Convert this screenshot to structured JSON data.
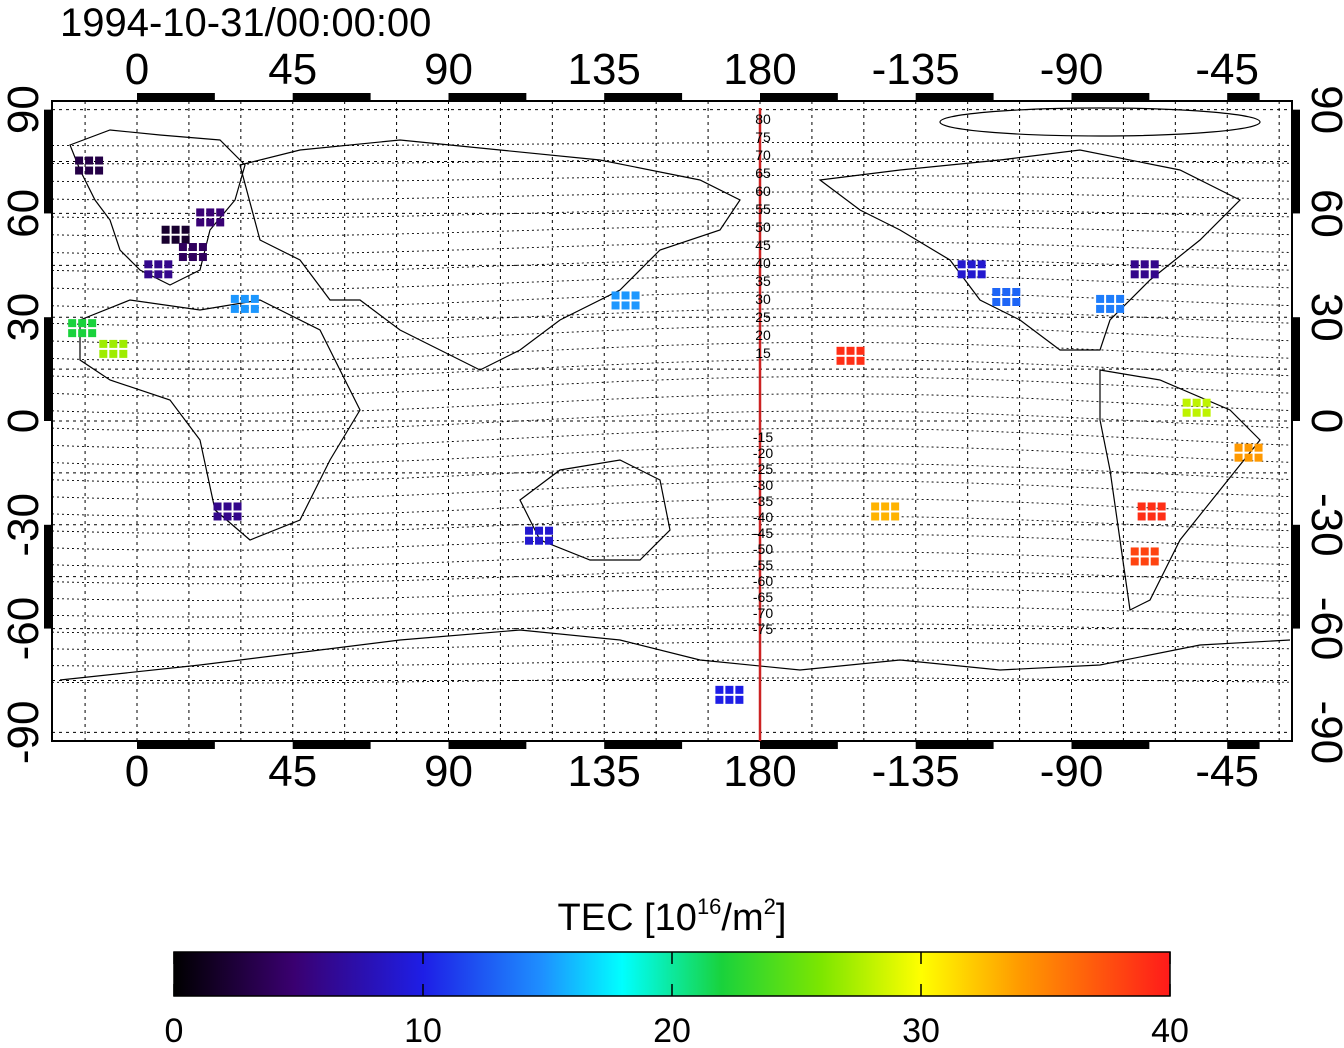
{
  "timestamp": "1994-10-31/00:00:00",
  "axes": {
    "lon_ticks": [
      "0",
      "45",
      "90",
      "135",
      "180",
      "-135",
      "-90",
      "-45"
    ],
    "lat_ticks": [
      "90",
      "60",
      "30",
      "0",
      "-30",
      "-60",
      "-90"
    ]
  },
  "dip_lat_labels": {
    "north": [
      "80",
      "75",
      "70",
      "65",
      "60",
      "55",
      "50",
      "45",
      "40",
      "35",
      "30",
      "25",
      "20",
      "15"
    ],
    "south": [
      "-15",
      "-20",
      "-25",
      "-30",
      "-35",
      "-40",
      "-45",
      "-50",
      "-55",
      "-60",
      "-65",
      "-70",
      "-75"
    ]
  },
  "colorbar": {
    "title_prefix": "TEC  [10",
    "title_exp": "16",
    "title_mid": "/m",
    "title_exp2": "2",
    "title_suffix": "]",
    "ticks": [
      "0",
      "10",
      "20",
      "30",
      "40"
    ],
    "min": 0,
    "max": 40
  },
  "colors": {
    "meridian_line": "#cc2222",
    "frame": "#000000"
  },
  "tec_samples": [
    {
      "lon": -15,
      "lat": 75,
      "tec": 3
    },
    {
      "lon": 10,
      "lat": 55,
      "tec": 2
    },
    {
      "lon": 15,
      "lat": 50,
      "tec": 4
    },
    {
      "lon": 20,
      "lat": 60,
      "tec": 5
    },
    {
      "lon": 5,
      "lat": 45,
      "tec": 6
    },
    {
      "lon": 30,
      "lat": 35,
      "tec": 15
    },
    {
      "lon": -17,
      "lat": 28,
      "tec": 22
    },
    {
      "lon": -8,
      "lat": 22,
      "tec": 27
    },
    {
      "lon": 25,
      "lat": -25,
      "tec": 6
    },
    {
      "lon": 115,
      "lat": -32,
      "tec": 9
    },
    {
      "lon": 140,
      "lat": 36,
      "tec": 15
    },
    {
      "lon": 170,
      "lat": -78,
      "tec": 10
    },
    {
      "lon": -155,
      "lat": 20,
      "tec": 39
    },
    {
      "lon": -145,
      "lat": -25,
      "tec": 33
    },
    {
      "lon": -120,
      "lat": 45,
      "tec": 9
    },
    {
      "lon": -110,
      "lat": 37,
      "tec": 13
    },
    {
      "lon": -80,
      "lat": 35,
      "tec": 14
    },
    {
      "lon": -70,
      "lat": 45,
      "tec": 6
    },
    {
      "lon": -55,
      "lat": 5,
      "tec": 28
    },
    {
      "lon": -40,
      "lat": -8,
      "tec": 34
    },
    {
      "lon": -68,
      "lat": -25,
      "tec": 39
    },
    {
      "lon": -70,
      "lat": -38,
      "tec": 38
    }
  ]
}
